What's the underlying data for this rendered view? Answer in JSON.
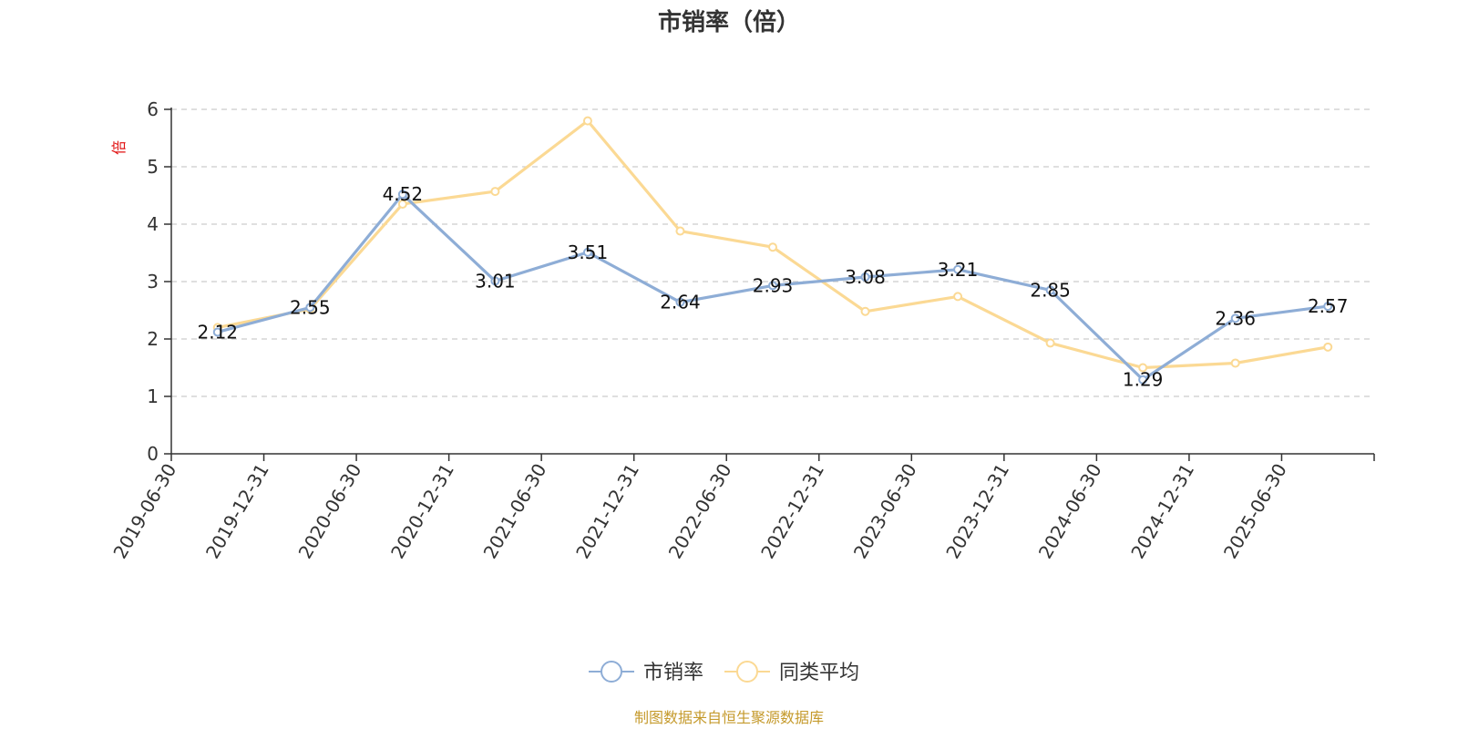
{
  "title": "市销率（倍）",
  "source_note": "制图数据来自恒生聚源数据库",
  "colors": {
    "series_main": "#8eadd6",
    "series_avg": "#fbd994",
    "axis": "#333333",
    "grid": "#cccccc",
    "unit": "#e01010",
    "source": "#c59a2c"
  },
  "chart_data": {
    "type": "line",
    "title": "市销率（倍）",
    "ylabel": "倍",
    "xlabel": "",
    "ylim": [
      0,
      6
    ],
    "yticks": [
      0,
      1,
      2,
      3,
      4,
      5,
      6
    ],
    "grid": true,
    "legend_position": "bottom-center",
    "categories": [
      "2019-06-30",
      "2019-12-31",
      "2020-06-30",
      "2020-12-31",
      "2021-06-30",
      "2021-12-31",
      "2022-06-30",
      "2022-12-31",
      "2023-06-30",
      "2023-12-31",
      "2024-06-30",
      "2024-12-31",
      "2025-06-30"
    ],
    "series": [
      {
        "name": "市销率",
        "color": "#8eadd6",
        "show_labels": true,
        "values": [
          2.12,
          2.55,
          4.52,
          3.01,
          3.51,
          2.64,
          2.93,
          3.08,
          3.21,
          2.85,
          1.29,
          2.36,
          2.57
        ]
      },
      {
        "name": "同类平均",
        "color": "#fbd994",
        "show_labels": false,
        "values": [
          2.2,
          2.52,
          4.35,
          4.57,
          5.8,
          3.88,
          3.6,
          2.48,
          2.74,
          1.93,
          1.5,
          1.58,
          1.86
        ]
      }
    ]
  }
}
